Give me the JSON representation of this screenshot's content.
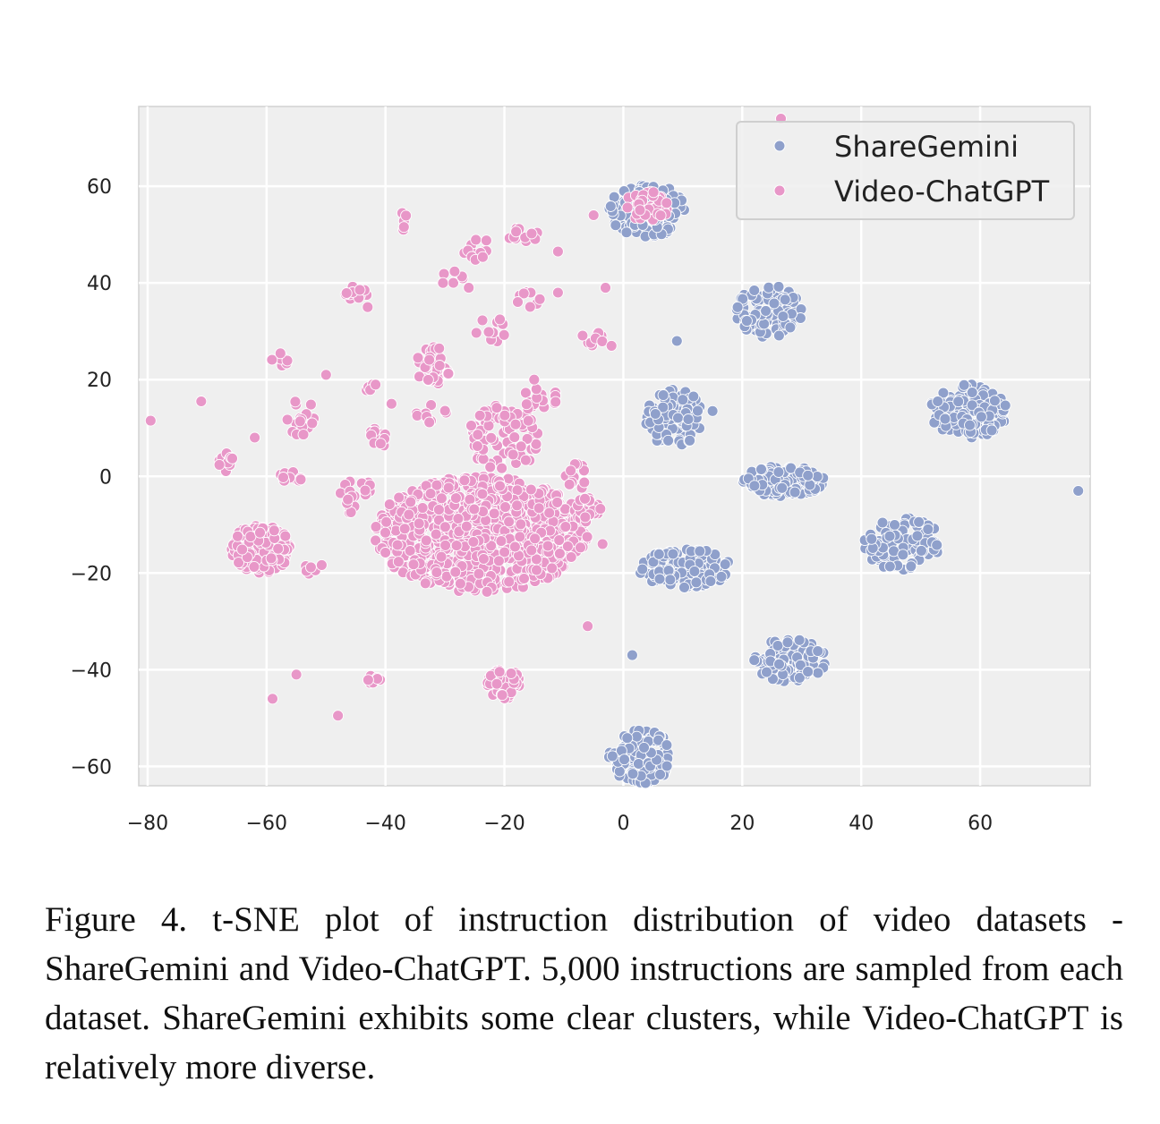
{
  "chart_data": {
    "type": "scatter",
    "title": "",
    "xlabel": "",
    "ylabel": "",
    "xlim": [
      -81.5,
      78.5
    ],
    "ylim": [
      -64,
      76.5
    ],
    "xticks": [
      -80,
      -60,
      -40,
      -20,
      0,
      20,
      40,
      60
    ],
    "yticks": [
      -60,
      -40,
      -20,
      0,
      20,
      40,
      60
    ],
    "xtick_labels": [
      "−80",
      "−60",
      "−40",
      "−20",
      "0",
      "20",
      "40",
      "60"
    ],
    "ytick_labels": [
      "−60",
      "−40",
      "−20",
      "0",
      "20",
      "40",
      "60"
    ],
    "grid": true,
    "legend_position": "top-right",
    "series": [
      {
        "name": "ShareGemini",
        "color": "#8fa0cb",
        "clusters": [
          {
            "cx": 4,
            "cy": 55,
            "rx": 6.5,
            "ry": 5.5,
            "n": 130
          },
          {
            "cx": 24.5,
            "cy": 34,
            "rx": 5.5,
            "ry": 5.5,
            "n": 110
          },
          {
            "cx": 58,
            "cy": 13.5,
            "rx": 6.5,
            "ry": 5.5,
            "n": 130
          },
          {
            "cx": 8.5,
            "cy": 12,
            "rx": 5,
            "ry": 6,
            "n": 110
          },
          {
            "cx": 27,
            "cy": -1,
            "rx": 7,
            "ry": 3.2,
            "n": 130
          },
          {
            "cx": 47,
            "cy": -14,
            "rx": 6.5,
            "ry": 5.5,
            "n": 120
          },
          {
            "cx": 10.5,
            "cy": -19,
            "rx": 8,
            "ry": 4,
            "n": 130
          },
          {
            "cx": 28,
            "cy": -38,
            "rx": 6,
            "ry": 4.5,
            "n": 110
          },
          {
            "cx": 3,
            "cy": -58,
            "rx": 5.5,
            "ry": 5.5,
            "n": 110
          }
        ],
        "outliers": [
          [
            9,
            28
          ],
          [
            1.5,
            -37
          ],
          [
            76.5,
            -3
          ],
          [
            15,
            13.5
          ]
        ]
      },
      {
        "name": "Video-ChatGPT",
        "color": "#e897c8",
        "clusters": [
          {
            "cx": -24,
            "cy": -12,
            "rx": 18,
            "ry": 12,
            "n": 800
          },
          {
            "cx": -61,
            "cy": -15,
            "rx": 5,
            "ry": 5,
            "n": 160
          },
          {
            "cx": -20,
            "cy": -43,
            "rx": 3,
            "ry": 3,
            "n": 55
          },
          {
            "cx": 4,
            "cy": 56,
            "rx": 4,
            "ry": 3,
            "n": 45
          },
          {
            "cx": -6,
            "cy": -7,
            "rx": 2.5,
            "ry": 2.5,
            "n": 30
          },
          {
            "cx": -32,
            "cy": 23,
            "rx": 3,
            "ry": 4,
            "n": 40
          },
          {
            "cx": -20,
            "cy": 8,
            "rx": 6,
            "ry": 7,
            "n": 80
          },
          {
            "cx": -41,
            "cy": 8,
            "rx": 2,
            "ry": 2,
            "n": 14
          },
          {
            "cx": -45,
            "cy": -4,
            "rx": 3,
            "ry": 4,
            "n": 20
          },
          {
            "cx": -67,
            "cy": 3,
            "rx": 1.5,
            "ry": 2,
            "n": 10
          },
          {
            "cx": -54,
            "cy": 12,
            "rx": 2.5,
            "ry": 4,
            "n": 20
          },
          {
            "cx": -56,
            "cy": 0,
            "rx": 2,
            "ry": 1.5,
            "n": 10
          },
          {
            "cx": -45,
            "cy": 38,
            "rx": 2,
            "ry": 1.5,
            "n": 14
          },
          {
            "cx": -25,
            "cy": 47,
            "rx": 3,
            "ry": 3,
            "n": 14
          },
          {
            "cx": -17,
            "cy": 50,
            "rx": 3,
            "ry": 1.5,
            "n": 12
          },
          {
            "cx": -58,
            "cy": 24,
            "rx": 2,
            "ry": 1.5,
            "n": 8
          },
          {
            "cx": -29,
            "cy": 41,
            "rx": 2,
            "ry": 1.5,
            "n": 6
          },
          {
            "cx": -37,
            "cy": 53,
            "rx": 0.8,
            "ry": 2,
            "n": 5
          },
          {
            "cx": -14,
            "cy": 16,
            "rx": 3,
            "ry": 3,
            "n": 18
          },
          {
            "cx": -5,
            "cy": 29,
            "rx": 2,
            "ry": 2,
            "n": 12
          },
          {
            "cx": -8,
            "cy": 0,
            "rx": 2,
            "ry": 3,
            "n": 12
          },
          {
            "cx": -22,
            "cy": 30,
            "rx": 3,
            "ry": 3,
            "n": 10
          },
          {
            "cx": -16,
            "cy": 37,
            "rx": 2,
            "ry": 2,
            "n": 8
          },
          {
            "cx": -52,
            "cy": -19,
            "rx": 1.5,
            "ry": 1.5,
            "n": 6
          },
          {
            "cx": -42,
            "cy": -42,
            "rx": 1.5,
            "ry": 1,
            "n": 7
          },
          {
            "cx": -42,
            "cy": 18,
            "rx": 1.5,
            "ry": 1,
            "n": 5
          },
          {
            "cx": -32,
            "cy": 13,
            "rx": 3,
            "ry": 2,
            "n": 10
          }
        ],
        "outliers": [
          [
            -79.5,
            11.5
          ],
          [
            26.5,
            74
          ],
          [
            -59,
            -46
          ],
          [
            -55,
            -41
          ],
          [
            -48,
            -49.5
          ],
          [
            -6,
            -31
          ],
          [
            -5,
            54
          ],
          [
            -3,
            39
          ],
          [
            -71,
            15.5
          ],
          [
            -50,
            21
          ],
          [
            -39,
            15
          ],
          [
            -26,
            39
          ],
          [
            -15,
            20
          ],
          [
            -11,
            46.5
          ],
          [
            -62,
            8
          ],
          [
            -43,
            35
          ],
          [
            -2,
            27
          ],
          [
            -11,
            38
          ],
          [
            -12,
            -19
          ],
          [
            -3.5,
            -14
          ]
        ]
      }
    ]
  },
  "caption": "Figure 4. t-SNE plot of instruction distribution of video datasets - ShareGemini and Video-ChatGPT. 5,000 instructions are sampled from each dataset. ShareGemini exhibits some clear clusters, while Video-ChatGPT is relatively more diverse."
}
